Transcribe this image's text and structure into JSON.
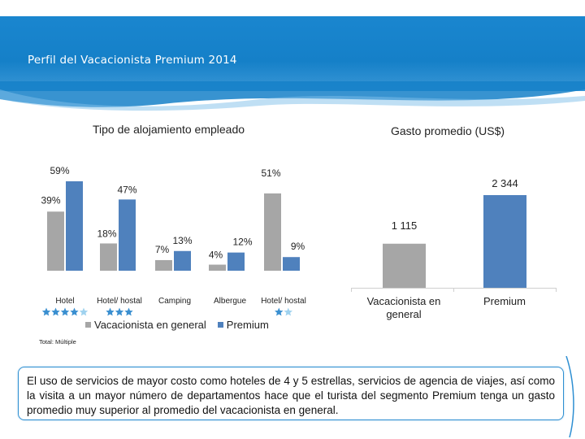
{
  "page": {
    "title": "Perfil del Vacacionista Premium 2014",
    "footnote": "Total: Múltiple",
    "note": "El uso de servicios de mayor costo como hoteles de 4 y 5 estrellas, servicios de agencia de viajes, así como la visita a un mayor número de departamentos hace que el turista del segmento Premium tenga un gasto promedio muy superior al promedio del vacacionista en general."
  },
  "colors": {
    "header": "#1a86cf",
    "general": "#a6a6a6",
    "premium": "#4f81bd",
    "star_dark": "#3a8fd0",
    "star_light": "#9fd2ef"
  },
  "chart_data": [
    {
      "type": "bar",
      "title": "Tipo de alojamiento empleado",
      "categories": [
        "Hotel",
        "Hotel/ hostal",
        "Camping",
        "Albergue",
        "Hotel/ hostal"
      ],
      "category_stars": [
        {
          "dark": 4,
          "light": 1
        },
        {
          "dark": 3,
          "light": 0
        },
        {
          "dark": 0,
          "light": 0
        },
        {
          "dark": 0,
          "light": 0
        },
        {
          "dark": 1,
          "light": 1
        }
      ],
      "series": [
        {
          "name": "Vacacionista en general",
          "values": [
            39,
            18,
            7,
            4,
            51
          ],
          "labels": [
            "39%",
            "18%",
            "7%",
            "4%",
            "51%"
          ]
        },
        {
          "name": "Premium",
          "values": [
            59,
            47,
            13,
            12,
            9
          ],
          "labels": [
            "59%",
            "47%",
            "13%",
            "12%",
            "9%"
          ]
        }
      ],
      "ylim": [
        0,
        60
      ],
      "legend": "bottom"
    },
    {
      "type": "bar",
      "title": "Gasto promedio (US$)",
      "categories": [
        "Vacacionista en general",
        "Premium"
      ],
      "values": [
        1115,
        2344
      ],
      "labels": [
        "1 115",
        "2 344"
      ],
      "ylim": [
        0,
        2344
      ]
    }
  ]
}
